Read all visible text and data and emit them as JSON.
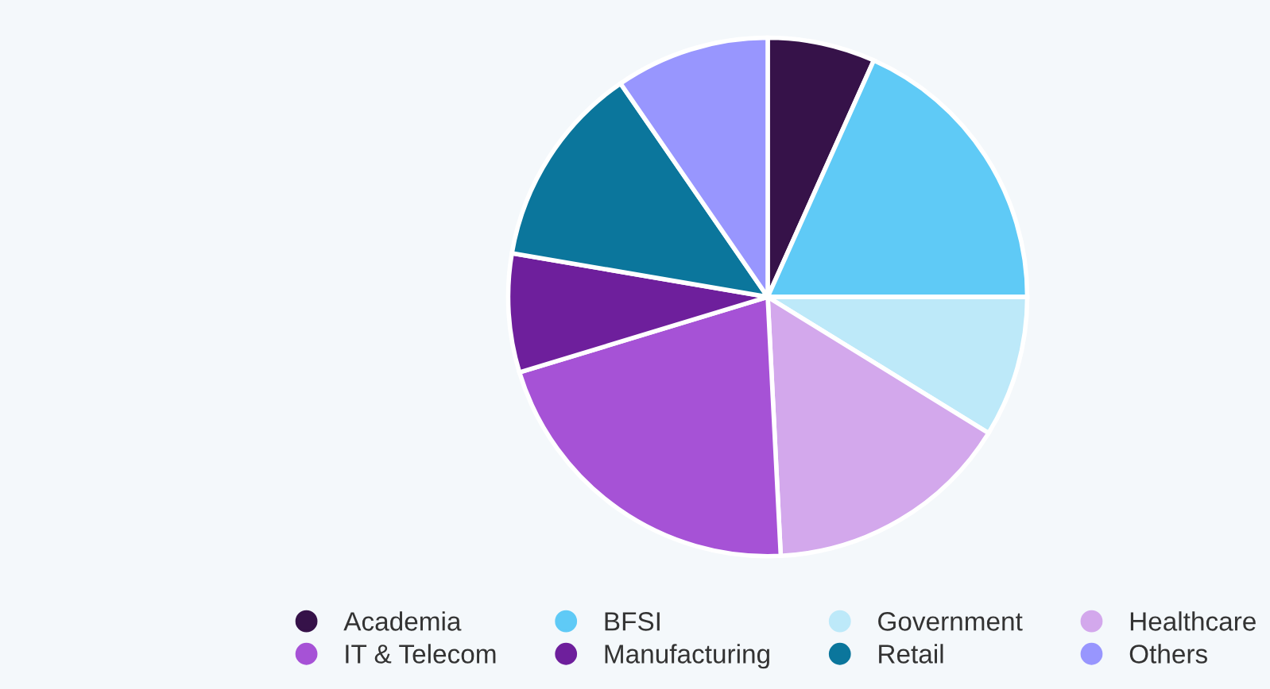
{
  "chart_data": {
    "type": "pie",
    "categories": [
      "Academia",
      "BFSI",
      "Government",
      "Healthcare",
      "IT & Telecom",
      "Manufacturing",
      "Retail",
      "Others"
    ],
    "values": [
      6.7,
      18.3,
      8.8,
      15.4,
      21.1,
      7.4,
      12.7,
      9.6
    ],
    "colors": [
      "#361249",
      "#5fcaf6",
      "#bde9f9",
      "#d3a8ec",
      "#a652d6",
      "#6e1f9c",
      "#0b769c",
      "#9896fe"
    ],
    "legend": "bottom"
  }
}
